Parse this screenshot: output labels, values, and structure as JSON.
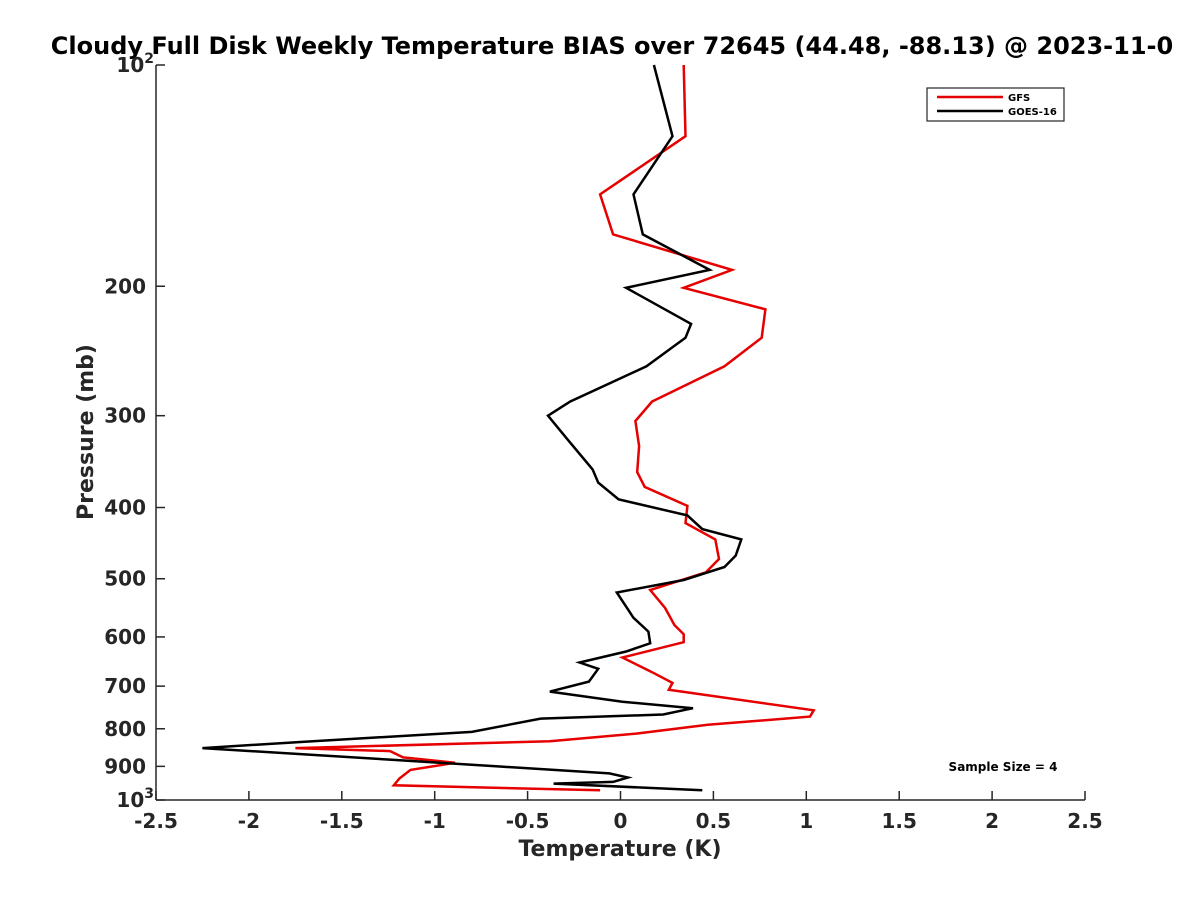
{
  "chart_data": {
    "type": "line",
    "title": "Cloudy Full Disk Weekly Temperature BIAS over 72645 (44.48, -88.13) @ 2023-11-0",
    "xlabel": "Temperature (K)",
    "ylabel": "Pressure (mb)",
    "xlim": [
      -2.5,
      2.5
    ],
    "ylim": [
      100,
      1000
    ],
    "y_scale": "log",
    "y_reversed": true,
    "x_ticks": [
      "-2.5",
      "-2",
      "-1.5",
      "-1",
      "-0.5",
      "0",
      "0.5",
      "1",
      "1.5",
      "2",
      "2.5"
    ],
    "y_ticks": [
      {
        "value": 100,
        "label": "10",
        "sup": "2"
      },
      {
        "value": 200,
        "label": "200"
      },
      {
        "value": 300,
        "label": "300"
      },
      {
        "value": 400,
        "label": "400"
      },
      {
        "value": 500,
        "label": "500"
      },
      {
        "value": 600,
        "label": "600"
      },
      {
        "value": 700,
        "label": "700"
      },
      {
        "value": 800,
        "label": "800"
      },
      {
        "value": 900,
        "label": "900"
      },
      {
        "value": 1000,
        "label": "10",
        "sup": "3"
      }
    ],
    "legend_position": "top-right",
    "annotation": "Sample Size = 4",
    "series": [
      {
        "name": "GFS",
        "color": "#e60000",
        "points": [
          [
            0.34,
            100
          ],
          [
            0.35,
            125
          ],
          [
            -0.11,
            150
          ],
          [
            -0.04,
            170
          ],
          [
            0.6,
            190
          ],
          [
            0.34,
            201
          ],
          [
            0.78,
            215
          ],
          [
            0.76,
            235
          ],
          [
            0.56,
            257
          ],
          [
            0.17,
            287
          ],
          [
            0.08,
            305
          ],
          [
            0.1,
            330
          ],
          [
            0.09,
            358
          ],
          [
            0.13,
            375
          ],
          [
            0.36,
            398
          ],
          [
            0.35,
            420
          ],
          [
            0.51,
            442
          ],
          [
            0.53,
            470
          ],
          [
            0.46,
            490
          ],
          [
            0.16,
            518
          ],
          [
            0.24,
            548
          ],
          [
            0.29,
            578
          ],
          [
            0.34,
            595
          ],
          [
            0.34,
            610
          ],
          [
            0.01,
            640
          ],
          [
            0.17,
            670
          ],
          [
            0.28,
            693
          ],
          [
            0.26,
            708
          ],
          [
            1.04,
            755
          ],
          [
            1.02,
            770
          ],
          [
            0.47,
            790
          ],
          [
            0.09,
            812
          ],
          [
            -0.38,
            832
          ],
          [
            -1.75,
            850
          ],
          [
            -1.24,
            858
          ],
          [
            -1.17,
            875
          ],
          [
            -0.89,
            890
          ],
          [
            -1.13,
            910
          ],
          [
            -1.19,
            935
          ],
          [
            -1.22,
            955
          ],
          [
            -0.11,
            970
          ]
        ]
      },
      {
        "name": "GOES-16",
        "color": "#000000",
        "points": [
          [
            0.18,
            100
          ],
          [
            0.28,
            125
          ],
          [
            0.07,
            150
          ],
          [
            0.12,
            170
          ],
          [
            0.48,
            190
          ],
          [
            0.03,
            201
          ],
          [
            0.38,
            225
          ],
          [
            0.35,
            235
          ],
          [
            0.14,
            257
          ],
          [
            -0.27,
            287
          ],
          [
            -0.39,
            300
          ],
          [
            -0.29,
            322
          ],
          [
            -0.15,
            355
          ],
          [
            -0.12,
            370
          ],
          [
            -0.01,
            390
          ],
          [
            0.36,
            410
          ],
          [
            0.44,
            428
          ],
          [
            0.65,
            442
          ],
          [
            0.62,
            465
          ],
          [
            0.56,
            482
          ],
          [
            0.34,
            502
          ],
          [
            -0.02,
            522
          ],
          [
            0.07,
            565
          ],
          [
            0.15,
            590
          ],
          [
            0.16,
            612
          ],
          [
            0.03,
            628
          ],
          [
            -0.22,
            650
          ],
          [
            -0.12,
            663
          ],
          [
            -0.17,
            690
          ],
          [
            -0.38,
            712
          ],
          [
            0.01,
            735
          ],
          [
            0.39,
            750
          ],
          [
            0.23,
            765
          ],
          [
            -0.43,
            775
          ],
          [
            -0.8,
            808
          ],
          [
            -1.7,
            833
          ],
          [
            -2.25,
            850
          ],
          [
            -1.22,
            882
          ],
          [
            -0.66,
            900
          ],
          [
            -0.06,
            920
          ],
          [
            0.04,
            932
          ],
          [
            -0.04,
            945
          ],
          [
            -0.36,
            950
          ],
          [
            0.44,
            970
          ]
        ]
      }
    ]
  }
}
